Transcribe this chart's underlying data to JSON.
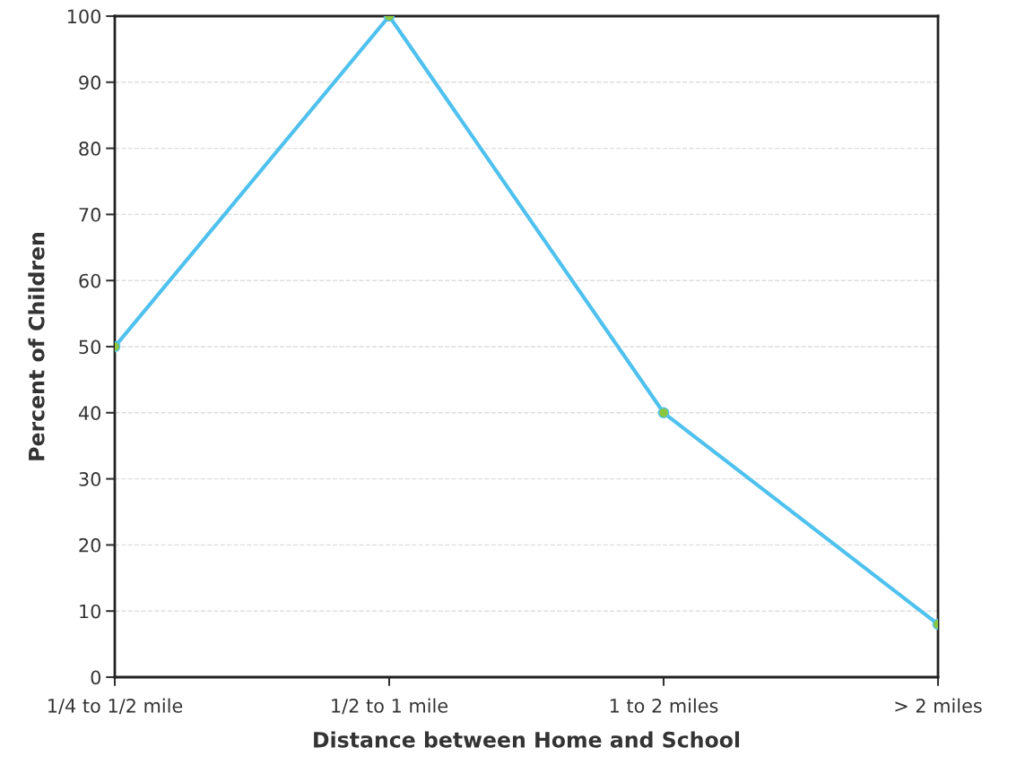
{
  "chart_data": {
    "type": "line",
    "xlabel": "Distance between Home and School",
    "ylabel": "Percent of Children",
    "categories": [
      "1/4 to 1/2 mile",
      "1/2 to 1 mile",
      "1 to 2 miles",
      "> 2 miles"
    ],
    "series": [
      {
        "color": "#4fc1ee",
        "values": [
          50,
          100,
          40,
          8
        ]
      }
    ],
    "ylim": [
      0,
      100
    ],
    "yticks": [
      0,
      10,
      20,
      30,
      40,
      50,
      60,
      70,
      80,
      90,
      100
    ],
    "grid": "y",
    "marker": "circle",
    "line_style": "solid"
  }
}
